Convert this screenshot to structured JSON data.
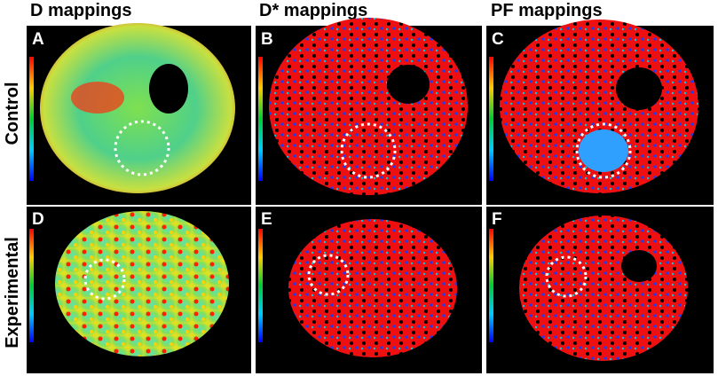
{
  "columns": [
    "D mappings",
    "D* mappings",
    "PF mappings"
  ],
  "rows": [
    "Control",
    "Experimental"
  ],
  "panels": [
    "A",
    "B",
    "C",
    "D",
    "E",
    "F"
  ]
}
